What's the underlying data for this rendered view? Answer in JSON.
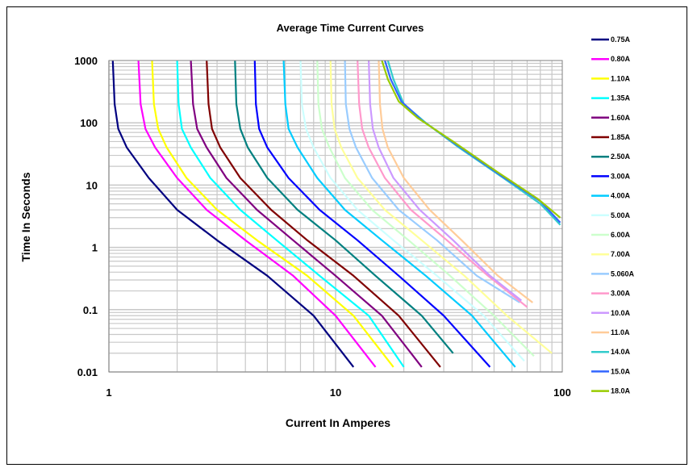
{
  "chart_data": {
    "type": "line",
    "title": "Average Time Current Curves",
    "xlabel": "Current In Amperes",
    "ylabel": "Time In Seconds",
    "x_scale": "log",
    "y_scale": "log",
    "xlim": [
      1,
      100
    ],
    "ylim": [
      0.01,
      1000
    ],
    "x_ticks": [
      "1",
      "10",
      "100"
    ],
    "y_ticks": [
      "0.01",
      "0.1",
      "1",
      "10",
      "100",
      "1000"
    ],
    "grid": true,
    "legend_position": "right",
    "series": [
      {
        "name": "0.75A",
        "color": "#000080",
        "points": [
          [
            1.04,
            1000
          ],
          [
            1.06,
            200
          ],
          [
            1.1,
            80
          ],
          [
            1.2,
            40
          ],
          [
            1.5,
            13
          ],
          [
            2,
            4
          ],
          [
            3,
            1.3
          ],
          [
            5,
            0.35
          ],
          [
            8,
            0.08
          ],
          [
            12,
            0.012
          ]
        ]
      },
      {
        "name": "0.80A",
        "color": "#ff00ff",
        "points": [
          [
            1.35,
            1000
          ],
          [
            1.38,
            200
          ],
          [
            1.45,
            80
          ],
          [
            1.6,
            40
          ],
          [
            2,
            13
          ],
          [
            2.7,
            4
          ],
          [
            4,
            1.3
          ],
          [
            6.5,
            0.35
          ],
          [
            10,
            0.08
          ],
          [
            15,
            0.012
          ]
        ]
      },
      {
        "name": "1.10A",
        "color": "#ffff00",
        "points": [
          [
            1.55,
            1000
          ],
          [
            1.58,
            200
          ],
          [
            1.65,
            80
          ],
          [
            1.8,
            40
          ],
          [
            2.2,
            13
          ],
          [
            3,
            4
          ],
          [
            4.5,
            1.3
          ],
          [
            7.5,
            0.35
          ],
          [
            12,
            0.08
          ],
          [
            18,
            0.012
          ]
        ]
      },
      {
        "name": "1.35A",
        "color": "#00ffff",
        "points": [
          [
            2,
            1000
          ],
          [
            2.03,
            200
          ],
          [
            2.1,
            80
          ],
          [
            2.3,
            40
          ],
          [
            2.8,
            13
          ],
          [
            3.8,
            4
          ],
          [
            5.5,
            1.3
          ],
          [
            8.5,
            0.35
          ],
          [
            14,
            0.08
          ],
          [
            20,
            0.012
          ]
        ]
      },
      {
        "name": "1.60A",
        "color": "#800080",
        "points": [
          [
            2.3,
            1000
          ],
          [
            2.35,
            200
          ],
          [
            2.45,
            80
          ],
          [
            2.7,
            40
          ],
          [
            3.3,
            13
          ],
          [
            4.5,
            4
          ],
          [
            6.5,
            1.3
          ],
          [
            10,
            0.35
          ],
          [
            16,
            0.08
          ],
          [
            24,
            0.012
          ]
        ]
      },
      {
        "name": "1.85A",
        "color": "#800000",
        "points": [
          [
            2.7,
            1000
          ],
          [
            2.75,
            200
          ],
          [
            2.85,
            80
          ],
          [
            3.1,
            40
          ],
          [
            3.8,
            13
          ],
          [
            5.2,
            4
          ],
          [
            7.5,
            1.3
          ],
          [
            12,
            0.35
          ],
          [
            19,
            0.08
          ],
          [
            29,
            0.012
          ]
        ]
      },
      {
        "name": "2.50A",
        "color": "#008080",
        "points": [
          [
            3.6,
            1000
          ],
          [
            3.65,
            200
          ],
          [
            3.8,
            80
          ],
          [
            4.1,
            40
          ],
          [
            5,
            13
          ],
          [
            6.8,
            4
          ],
          [
            10,
            1.3
          ],
          [
            15,
            0.35
          ],
          [
            24,
            0.08
          ],
          [
            33,
            0.02
          ]
        ]
      },
      {
        "name": "3.00A",
        "color": "#0000ff",
        "points": [
          [
            4.4,
            1000
          ],
          [
            4.45,
            200
          ],
          [
            4.6,
            80
          ],
          [
            5,
            40
          ],
          [
            6.2,
            13
          ],
          [
            8.5,
            4
          ],
          [
            12.5,
            1.3
          ],
          [
            19,
            0.35
          ],
          [
            30,
            0.08
          ],
          [
            48,
            0.012
          ]
        ]
      },
      {
        "name": "4.00A",
        "color": "#00ccff",
        "points": [
          [
            5.9,
            1000
          ],
          [
            6,
            200
          ],
          [
            6.2,
            80
          ],
          [
            6.8,
            40
          ],
          [
            8.3,
            13
          ],
          [
            11,
            4
          ],
          [
            16,
            1.3
          ],
          [
            25,
            0.35
          ],
          [
            40,
            0.08
          ],
          [
            62,
            0.012
          ]
        ]
      },
      {
        "name": "5.00A",
        "color": "#ccffff",
        "points": [
          [
            7,
            1000
          ],
          [
            7.1,
            200
          ],
          [
            7.4,
            80
          ],
          [
            8,
            40
          ],
          [
            9.5,
            13
          ],
          [
            12.5,
            4
          ],
          [
            18,
            1.3
          ],
          [
            28,
            0.35
          ],
          [
            45,
            0.08
          ],
          [
            68,
            0.015
          ]
        ]
      },
      {
        "name": "6.00A",
        "color": "#ccffcc",
        "points": [
          [
            8.3,
            1000
          ],
          [
            8.4,
            200
          ],
          [
            8.7,
            80
          ],
          [
            9.4,
            40
          ],
          [
            11,
            13
          ],
          [
            14.5,
            4
          ],
          [
            21,
            1.3
          ],
          [
            32,
            0.35
          ],
          [
            50,
            0.08
          ],
          [
            75,
            0.018
          ]
        ]
      },
      {
        "name": "7.00A",
        "color": "#ffff99",
        "points": [
          [
            9.5,
            1000
          ],
          [
            9.6,
            200
          ],
          [
            9.9,
            80
          ],
          [
            10.6,
            40
          ],
          [
            12.5,
            13
          ],
          [
            16.5,
            4
          ],
          [
            24,
            1.3
          ],
          [
            37,
            0.35
          ],
          [
            57,
            0.08
          ],
          [
            90,
            0.02
          ]
        ]
      },
      {
        "name": "5.060A",
        "color": "#99ccff",
        "points": [
          [
            11,
            1000
          ],
          [
            11.1,
            200
          ],
          [
            11.5,
            80
          ],
          [
            12.3,
            40
          ],
          [
            14.5,
            13
          ],
          [
            19,
            4
          ],
          [
            28,
            1.3
          ],
          [
            42,
            0.35
          ],
          [
            65,
            0.13
          ]
        ]
      },
      {
        "name": "3.00A",
        "color": "#ff99cc",
        "points": [
          [
            12.5,
            1000
          ],
          [
            12.7,
            200
          ],
          [
            13.1,
            80
          ],
          [
            14,
            40
          ],
          [
            16.5,
            13
          ],
          [
            21.5,
            4
          ],
          [
            31,
            1.3
          ],
          [
            47,
            0.35
          ],
          [
            70,
            0.11
          ]
        ]
      },
      {
        "name": "10.0A",
        "color": "#cc99ff",
        "points": [
          [
            14,
            1000
          ],
          [
            14.2,
            200
          ],
          [
            14.6,
            80
          ],
          [
            15.5,
            40
          ],
          [
            18,
            13
          ],
          [
            23.5,
            4
          ],
          [
            33,
            1.3
          ],
          [
            48,
            0.35
          ],
          [
            66,
            0.14
          ]
        ]
      },
      {
        "name": "11.0A",
        "color": "#ffcc99",
        "points": [
          [
            15.5,
            1000
          ],
          [
            15.7,
            200
          ],
          [
            16.1,
            80
          ],
          [
            17,
            40
          ],
          [
            20,
            13
          ],
          [
            26,
            4
          ],
          [
            36,
            1.3
          ],
          [
            52,
            0.35
          ],
          [
            74,
            0.13
          ]
        ]
      },
      {
        "name": "14.0A",
        "color": "#33cccc",
        "points": [
          [
            17,
            1000
          ],
          [
            18,
            500
          ],
          [
            20,
            200
          ],
          [
            25,
            100
          ],
          [
            35,
            40
          ],
          [
            55,
            13
          ],
          [
            80,
            5
          ],
          [
            98,
            2.3
          ]
        ]
      },
      {
        "name": "15.0A",
        "color": "#3366ff",
        "points": [
          [
            16.5,
            1000
          ],
          [
            17.5,
            500
          ],
          [
            19.5,
            220
          ],
          [
            24,
            110
          ],
          [
            34,
            45
          ],
          [
            54,
            14
          ],
          [
            80,
            5.5
          ],
          [
            98,
            2.5
          ]
        ]
      },
      {
        "name": "18.0A",
        "color": "#99cc00",
        "points": [
          [
            16,
            1000
          ],
          [
            17,
            500
          ],
          [
            19,
            220
          ],
          [
            23,
            120
          ],
          [
            33,
            50
          ],
          [
            52,
            16
          ],
          [
            78,
            6
          ],
          [
            98,
            3
          ]
        ]
      }
    ]
  }
}
